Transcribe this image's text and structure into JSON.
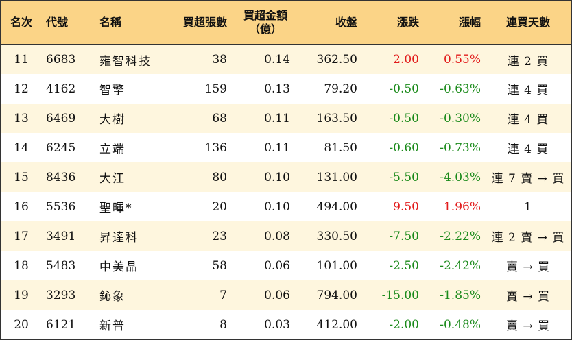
{
  "colors": {
    "header_bg": "#fbd487",
    "odd_row_bg": "#fef6de",
    "even_row_bg": "#ffffff",
    "up": "#e21b1b",
    "down": "#1a8a1a"
  },
  "header": {
    "rank": "名次",
    "code": "代號",
    "name": "名稱",
    "net_buy_lots": "買超張數",
    "net_buy_amount_line1": "買超金額",
    "net_buy_amount_line2": "（億）",
    "close": "收盤",
    "change": "漲跌",
    "change_pct": "漲幅",
    "consecutive_days": "連買天數"
  },
  "rows": [
    {
      "rank": "11",
      "code": "6683",
      "name": "雍智科技",
      "lots": "38",
      "amount": "0.14",
      "close": "362.50",
      "change": "2.00",
      "pct": "0.55%",
      "days": "連 2 買",
      "dir": "up"
    },
    {
      "rank": "12",
      "code": "4162",
      "name": "智擎",
      "lots": "159",
      "amount": "0.13",
      "close": "79.20",
      "change": "-0.50",
      "pct": "-0.63%",
      "days": "連 4 買",
      "dir": "down"
    },
    {
      "rank": "13",
      "code": "6469",
      "name": "大樹",
      "lots": "68",
      "amount": "0.11",
      "close": "163.50",
      "change": "-0.50",
      "pct": "-0.30%",
      "days": "連 4 買",
      "dir": "down"
    },
    {
      "rank": "14",
      "code": "6245",
      "name": "立端",
      "lots": "136",
      "amount": "0.11",
      "close": "81.50",
      "change": "-0.60",
      "pct": "-0.73%",
      "days": "連 4 買",
      "dir": "down"
    },
    {
      "rank": "15",
      "code": "8436",
      "name": "大江",
      "lots": "80",
      "amount": "0.10",
      "close": "131.00",
      "change": "-5.50",
      "pct": "-4.03%",
      "days": "連 7 賣 → 買",
      "dir": "down"
    },
    {
      "rank": "16",
      "code": "5536",
      "name": "聖暉*",
      "lots": "20",
      "amount": "0.10",
      "close": "494.00",
      "change": "9.50",
      "pct": "1.96%",
      "days": "1",
      "dir": "up"
    },
    {
      "rank": "17",
      "code": "3491",
      "name": "昇達科",
      "lots": "23",
      "amount": "0.08",
      "close": "330.50",
      "change": "-7.50",
      "pct": "-2.22%",
      "days": "連 2 賣 → 買",
      "dir": "down"
    },
    {
      "rank": "18",
      "code": "5483",
      "name": "中美晶",
      "lots": "58",
      "amount": "0.06",
      "close": "101.00",
      "change": "-2.50",
      "pct": "-2.42%",
      "days": "賣 → 買",
      "dir": "down"
    },
    {
      "rank": "19",
      "code": "3293",
      "name": "鈊象",
      "lots": "7",
      "amount": "0.06",
      "close": "794.00",
      "change": "-15.00",
      "pct": "-1.85%",
      "days": "賣 → 買",
      "dir": "down"
    },
    {
      "rank": "20",
      "code": "6121",
      "name": "新普",
      "lots": "8",
      "amount": "0.03",
      "close": "412.00",
      "change": "-2.00",
      "pct": "-0.48%",
      "days": "賣 → 買",
      "dir": "down"
    }
  ]
}
